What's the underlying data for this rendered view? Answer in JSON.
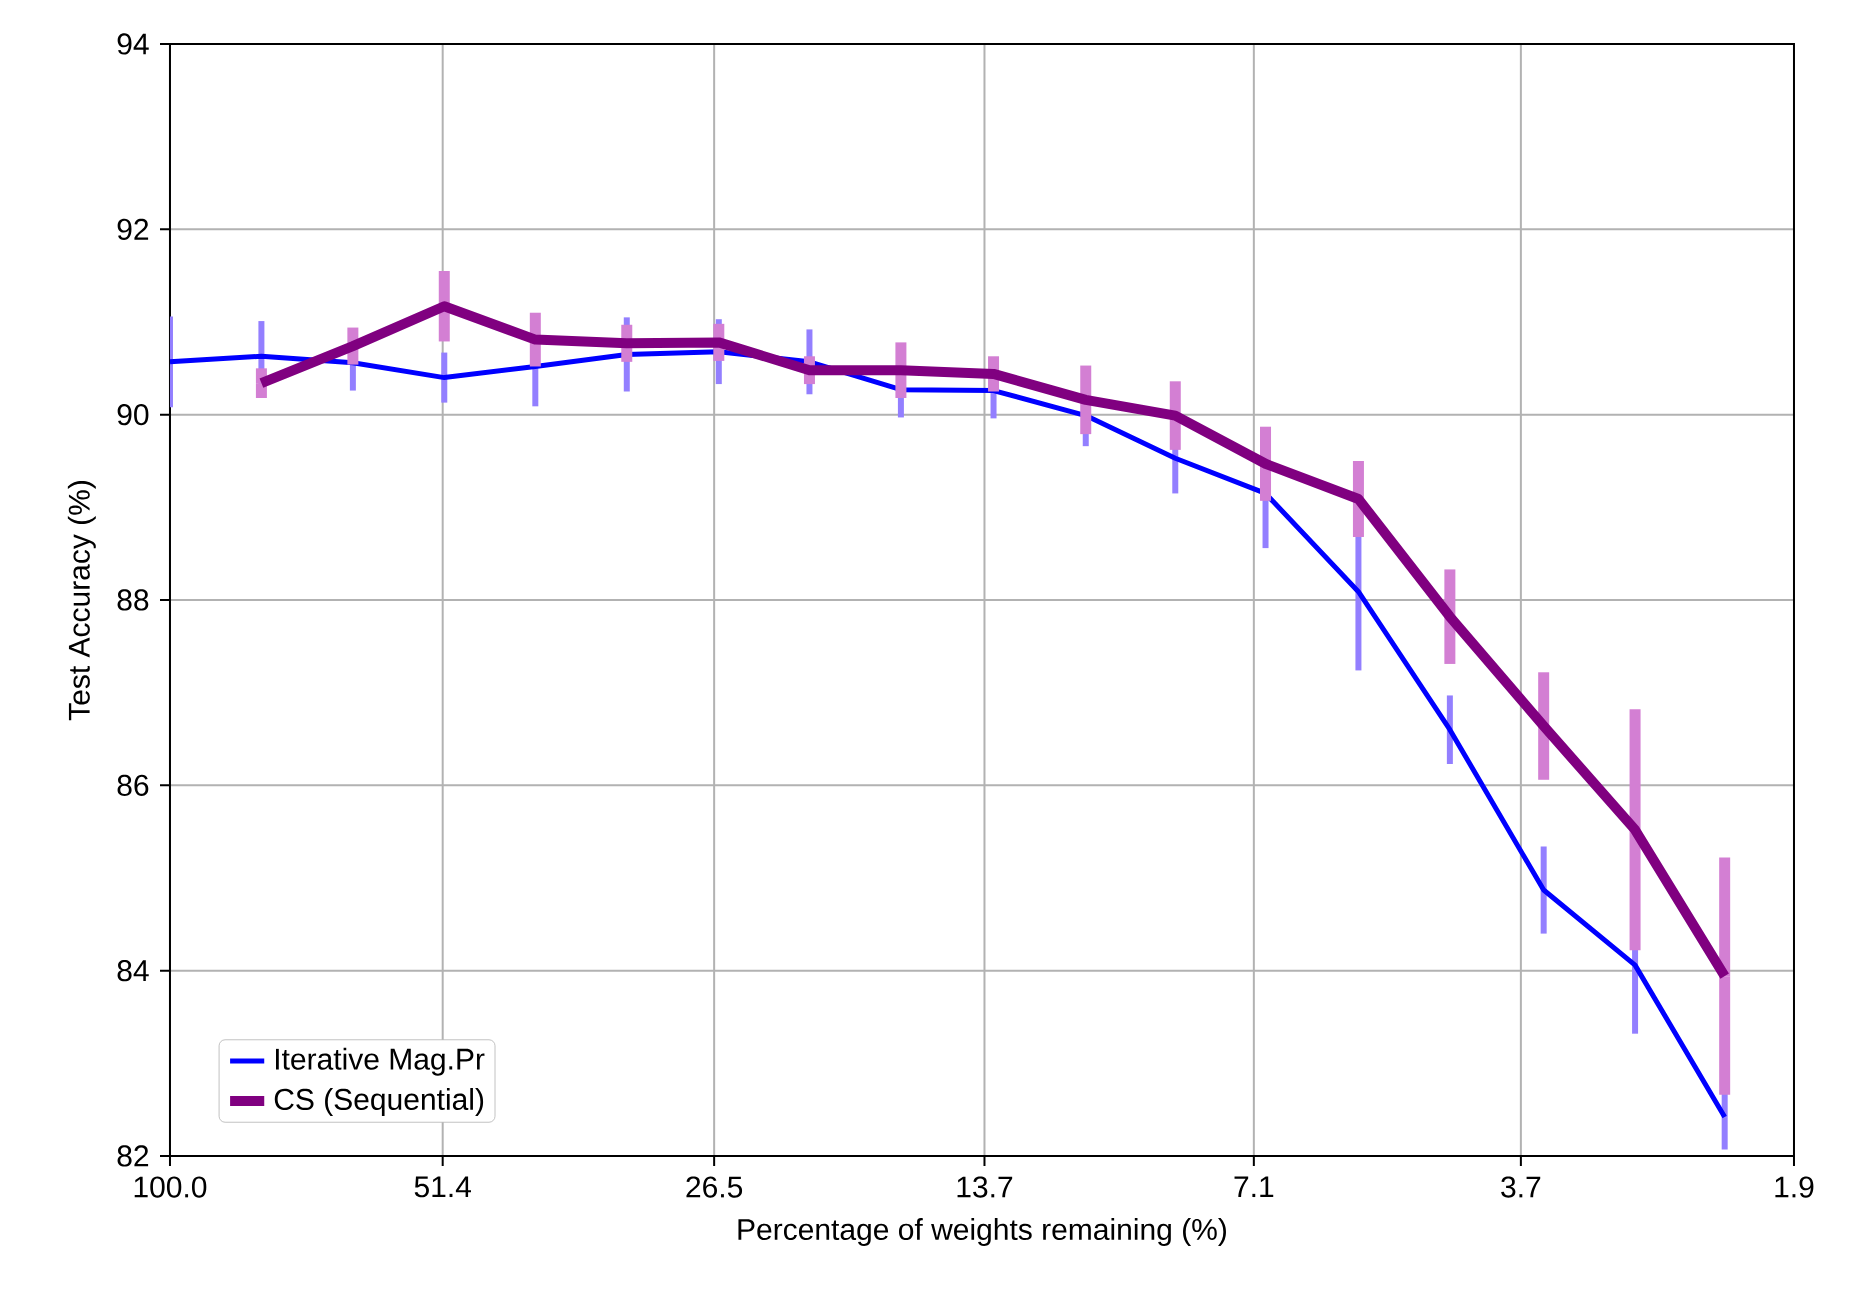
{
  "chart_data": {
    "type": "line",
    "xlabel": "Percentage of weights remaining (%)",
    "ylabel": "Test Accuracy (%)",
    "x": [
      100,
      80,
      64,
      51.2,
      41,
      32.8,
      26.2,
      21,
      16.8,
      13.4,
      10.7,
      8.6,
      6.9,
      5.5,
      4.4,
      3.5,
      2.8,
      2.25
    ],
    "log": "x",
    "xlim": [
      100,
      1.9
    ],
    "xticks": [
      {
        "value": 100,
        "label": "100.0"
      },
      51.4,
      26.5,
      13.7,
      7.1,
      3.7,
      1.9
    ],
    "ylim": [
      82,
      94
    ],
    "yticks": [
      82,
      84,
      86,
      88,
      90,
      92,
      94
    ],
    "grid": true,
    "legend": "bottom left",
    "series": [
      {
        "name": "Iterative Mag.Pr",
        "color": "#0000ff",
        "values": [
          90.57,
          90.63,
          90.56,
          90.4,
          90.52,
          90.65,
          90.68,
          90.57,
          90.27,
          90.26,
          89.99,
          89.53,
          89.15,
          88.09,
          86.6,
          84.87,
          84.06,
          82.42
        ],
        "errors": [
          0.49,
          0.38,
          0.3,
          0.27,
          0.43,
          0.4,
          0.35,
          0.35,
          0.3,
          0.3,
          0.33,
          0.38,
          0.59,
          0.85,
          0.37,
          0.47,
          0.74,
          [
            82.07,
            83.42
          ]
        ]
      },
      {
        "name": "CS (Sequential)",
        "color": "#800080",
        "values": [
          null,
          90.34,
          90.74,
          91.17,
          90.81,
          90.77,
          90.78,
          90.48,
          90.48,
          90.44,
          90.16,
          89.99,
          89.47,
          89.09,
          87.82,
          86.64,
          85.52,
          83.94
        ],
        "errors": [
          null,
          0.16,
          0.2,
          0.38,
          0.29,
          0.2,
          0.2,
          0.15,
          0.3,
          0.19,
          0.37,
          0.37,
          0.4,
          0.41,
          0.51,
          0.58,
          1.3,
          1.28
        ]
      }
    ]
  }
}
